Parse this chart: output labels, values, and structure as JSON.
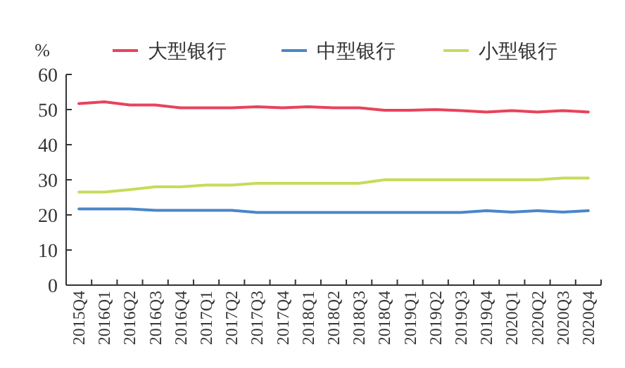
{
  "chart_data": {
    "type": "line",
    "ylabel": "%",
    "categories": [
      "2015Q4",
      "2016Q1",
      "2016Q2",
      "2016Q3",
      "2016Q4",
      "2017Q1",
      "2017Q2",
      "2017Q3",
      "2017Q4",
      "2018Q1",
      "2018Q2",
      "2018Q3",
      "2018Q4",
      "2019Q1",
      "2019Q2",
      "2019Q3",
      "2019Q4",
      "2020Q1",
      "2020Q2",
      "2020Q3",
      "2020Q4"
    ],
    "ylim": [
      0,
      60
    ],
    "yticks": [
      0,
      10,
      20,
      30,
      40,
      50,
      60
    ],
    "legend": "top",
    "grid": false,
    "marker": "none",
    "line_style": "solid",
    "series": [
      {
        "name": "大型银行",
        "color": "#e8435a",
        "values": [
          51.7,
          52.2,
          51.3,
          51.3,
          50.5,
          50.5,
          50.5,
          50.8,
          50.5,
          50.8,
          50.5,
          50.5,
          49.8,
          49.8,
          50,
          49.7,
          49.3,
          49.7,
          49.3,
          49.7,
          49.3
        ]
      },
      {
        "name": "中型银行",
        "color": "#4a86c8",
        "values": [
          21.7,
          21.7,
          21.7,
          21.3,
          21.3,
          21.3,
          21.3,
          20.7,
          20.7,
          20.7,
          20.7,
          20.7,
          20.7,
          20.7,
          20.7,
          20.7,
          21.2,
          20.8,
          21.2,
          20.8,
          21.2
        ]
      },
      {
        "name": "小型银行",
        "color": "#c5dc5a",
        "values": [
          26.5,
          26.5,
          27.2,
          28,
          28,
          28.5,
          28.5,
          29,
          29,
          29,
          29,
          29,
          30,
          30,
          30,
          30,
          30,
          30,
          30,
          30.5,
          30.5
        ]
      }
    ]
  }
}
